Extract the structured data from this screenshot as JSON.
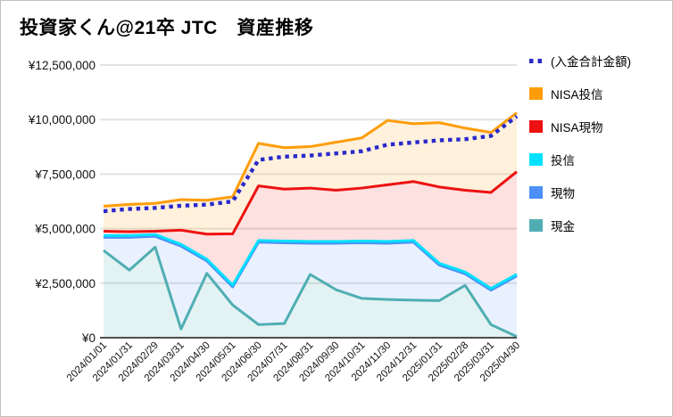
{
  "chart_data": {
    "type": "area",
    "stacked": true,
    "title": "投資家くん@21卒 JTC　資産推移",
    "x_labels": [
      "2024/01/01",
      "2024/01/31",
      "2024/02/29",
      "2024/03/31",
      "2024/04/30",
      "2024/05/31",
      "2024/06/30",
      "2024/07/31",
      "2024/08/31",
      "2024/09/30",
      "2024/10/31",
      "2024/11/30",
      "2024/12/31",
      "2025/01/31",
      "2025/02/28",
      "2025/03/31",
      "2025/04/30"
    ],
    "ylim": [
      0,
      12500000
    ],
    "y_ticks": {
      "values": [
        0,
        2500000,
        5000000,
        7500000,
        10000000,
        12500000
      ],
      "labels": [
        "¥0",
        "¥2,500,000",
        "¥5,000,000",
        "¥7,500,000",
        "¥10,000,000",
        "¥12,500,000"
      ]
    },
    "grid": "horizontal-only",
    "series": [
      {
        "id": "cash",
        "name": "現金",
        "color": "#4FAEB3",
        "fill": "rgba(79,174,179,0.16)",
        "values": [
          4000000,
          3100000,
          4150000,
          400000,
          2950000,
          1500000,
          600000,
          650000,
          2900000,
          2200000,
          1800000,
          1750000,
          1720000,
          1700000,
          2400000,
          600000,
          50000
        ]
      },
      {
        "id": "spot",
        "name": "現物",
        "color": "#4D8FF7",
        "fill": "rgba(77,143,247,0.12)",
        "values": [
          600000,
          1500000,
          500000,
          3800000,
          570000,
          830000,
          3780000,
          3700000,
          1430000,
          2130000,
          2550000,
          2580000,
          2660000,
          1630000,
          530000,
          1580000,
          2780000
        ]
      },
      {
        "id": "fund",
        "name": "投信",
        "color": "#00E1FF",
        "fill": "rgba(0,225,255,0.12)",
        "values": [
          80000,
          80000,
          80000,
          80000,
          80000,
          80000,
          80000,
          80000,
          80000,
          80000,
          80000,
          80000,
          80000,
          80000,
          80000,
          80000,
          80000
        ]
      },
      {
        "id": "nisa-spot",
        "name": "NISA現物",
        "color": "#EE1111",
        "fill": "rgba(238,17,17,0.13)",
        "values": [
          200000,
          180000,
          150000,
          650000,
          1150000,
          2350000,
          2500000,
          2380000,
          2450000,
          2350000,
          2430000,
          2600000,
          2700000,
          3500000,
          3750000,
          4400000,
          4700000
        ]
      },
      {
        "id": "nisa-fund",
        "name": "NISA投信",
        "color": "#FF9D09",
        "fill": "rgba(255,157,9,0.14)",
        "values": [
          1150000,
          1250000,
          1280000,
          1400000,
          1550000,
          1700000,
          1950000,
          1900000,
          1900000,
          2200000,
          2300000,
          2950000,
          2650000,
          2950000,
          2850000,
          2750000,
          2700000
        ]
      }
    ],
    "line_series": {
      "id": "deposit-total",
      "name": "(入金合計金額)",
      "style": "dotted",
      "color": "#2929CC",
      "values": [
        5800000,
        5900000,
        5950000,
        6050000,
        6100000,
        6250000,
        8150000,
        8300000,
        8350000,
        8450000,
        8550000,
        8850000,
        8950000,
        9050000,
        9100000,
        9250000,
        10150000
      ]
    },
    "legend": {
      "position": "right",
      "entries": [
        {
          "label": "(入金合計金額)",
          "color": "#2929CC",
          "swatch": "dotted"
        },
        {
          "label": "NISA投信",
          "color": "#FF9D09",
          "swatch": "solid"
        },
        {
          "label": "NISA現物",
          "color": "#EE1111",
          "swatch": "solid"
        },
        {
          "label": "投信",
          "color": "#00E1FF",
          "swatch": "solid"
        },
        {
          "label": "現物",
          "color": "#4D8FF7",
          "swatch": "solid"
        },
        {
          "label": "現金",
          "color": "#4FAEB3",
          "swatch": "solid"
        }
      ]
    },
    "axis_colors": {
      "gridline": "#e3e3e3",
      "axis_line": "#4d4d4d",
      "tick_text": "#111111"
    }
  }
}
